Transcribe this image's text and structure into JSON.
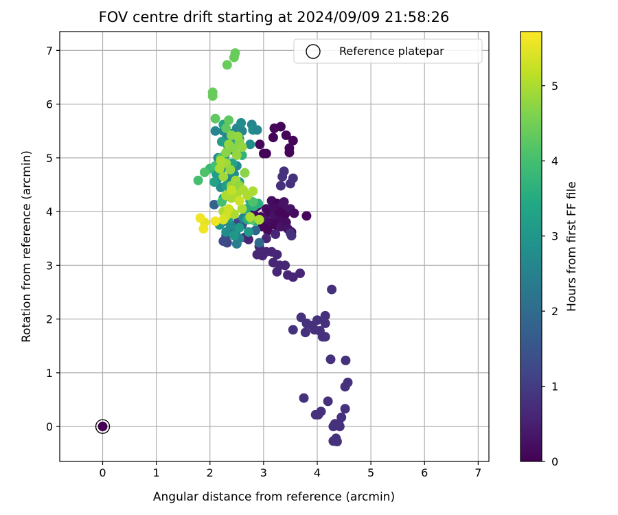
{
  "chart_data": {
    "type": "scatter",
    "title": "FOV centre drift starting at 2024/09/09 21:58:26",
    "xlabel": "Angular distance from reference (arcmin)",
    "ylabel": "Rotation from reference (arcmin)",
    "colorbar_label": "Hours from first FF file",
    "xlim": [
      -0.8,
      7.2
    ],
    "ylim": [
      -0.65,
      7.35
    ],
    "clim": [
      0,
      5.72
    ],
    "x_ticks": [
      "0",
      "1",
      "2",
      "3",
      "4",
      "5",
      "6",
      "7"
    ],
    "y_ticks": [
      "0",
      "1",
      "2",
      "3",
      "4",
      "5",
      "6",
      "7"
    ],
    "colorbar_ticks": [
      "0",
      "1",
      "2",
      "3",
      "4",
      "5"
    ],
    "grid": true,
    "colormap": "viridis",
    "legend": {
      "position": "top-right",
      "entries": [
        "Reference platepar"
      ]
    },
    "reference_point": {
      "x": 0,
      "y": 0
    },
    "points": [
      {
        "x": 3.2,
        "y": 5.55,
        "h": 0.1
      },
      {
        "x": 3.32,
        "y": 5.58,
        "h": 0.05
      },
      {
        "x": 3.42,
        "y": 5.42,
        "h": 0.1
      },
      {
        "x": 3.55,
        "y": 5.32,
        "h": 0.05
      },
      {
        "x": 3.48,
        "y": 5.18,
        "h": 0.1
      },
      {
        "x": 3.48,
        "y": 5.1,
        "h": 0.05
      },
      {
        "x": 3.0,
        "y": 5.08,
        "h": 0.1
      },
      {
        "x": 3.05,
        "y": 5.08,
        "h": 0.05
      },
      {
        "x": 2.93,
        "y": 5.25,
        "h": 0.1
      },
      {
        "x": 3.18,
        "y": 5.38,
        "h": 0.05
      },
      {
        "x": 3.15,
        "y": 4.2,
        "h": 0.2
      },
      {
        "x": 3.25,
        "y": 4.15,
        "h": 0.1
      },
      {
        "x": 3.35,
        "y": 4.1,
        "h": 0.3
      },
      {
        "x": 3.05,
        "y": 4.05,
        "h": 0.2
      },
      {
        "x": 3.1,
        "y": 3.98,
        "h": 0.1
      },
      {
        "x": 3.2,
        "y": 3.92,
        "h": 0.3
      },
      {
        "x": 3.3,
        "y": 3.88,
        "h": 0.2
      },
      {
        "x": 3.4,
        "y": 3.95,
        "h": 0.1
      },
      {
        "x": 3.5,
        "y": 4.05,
        "h": 0.3
      },
      {
        "x": 3.57,
        "y": 3.97,
        "h": 0.2
      },
      {
        "x": 2.95,
        "y": 3.9,
        "h": 0.1
      },
      {
        "x": 3.02,
        "y": 3.85,
        "h": 0.3
      },
      {
        "x": 3.12,
        "y": 3.8,
        "h": 0.2
      },
      {
        "x": 3.22,
        "y": 3.75,
        "h": 0.1
      },
      {
        "x": 3.32,
        "y": 3.72,
        "h": 0.3
      },
      {
        "x": 3.42,
        "y": 3.8,
        "h": 0.2
      },
      {
        "x": 3.8,
        "y": 3.92,
        "h": 0.1
      },
      {
        "x": 2.88,
        "y": 4.1,
        "h": 0.3
      },
      {
        "x": 2.82,
        "y": 3.95,
        "h": 0.2
      },
      {
        "x": 3.28,
        "y": 4.0,
        "h": 0.1
      },
      {
        "x": 3.38,
        "y": 4.18,
        "h": 0.3
      },
      {
        "x": 3.18,
        "y": 4.08,
        "h": 0.2
      },
      {
        "x": 2.98,
        "y": 3.72,
        "h": 0.1
      },
      {
        "x": 3.45,
        "y": 3.68,
        "h": 0.3
      },
      {
        "x": 3.52,
        "y": 3.62,
        "h": 0.2
      },
      {
        "x": 3.08,
        "y": 3.65,
        "h": 0.1
      },
      {
        "x": 3.35,
        "y": 4.65,
        "h": 0.8
      },
      {
        "x": 3.38,
        "y": 4.75,
        "h": 0.8
      },
      {
        "x": 3.32,
        "y": 4.48,
        "h": 0.8
      },
      {
        "x": 3.5,
        "y": 4.52,
        "h": 0.8
      },
      {
        "x": 3.55,
        "y": 4.62,
        "h": 0.8
      },
      {
        "x": 3.52,
        "y": 3.55,
        "h": 0.8
      },
      {
        "x": 3.5,
        "y": 3.6,
        "h": 0.8
      },
      {
        "x": 3.22,
        "y": 3.58,
        "h": 0.6
      },
      {
        "x": 3.05,
        "y": 3.5,
        "h": 0.6
      },
      {
        "x": 2.92,
        "y": 3.35,
        "h": 0.6
      },
      {
        "x": 3.05,
        "y": 3.25,
        "h": 0.6
      },
      {
        "x": 2.98,
        "y": 3.18,
        "h": 0.6
      },
      {
        "x": 2.88,
        "y": 3.2,
        "h": 0.6
      },
      {
        "x": 3.15,
        "y": 3.25,
        "h": 0.6
      },
      {
        "x": 3.25,
        "y": 3.2,
        "h": 0.6
      },
      {
        "x": 3.18,
        "y": 3.05,
        "h": 0.6
      },
      {
        "x": 3.3,
        "y": 3.0,
        "h": 0.6
      },
      {
        "x": 3.4,
        "y": 3.0,
        "h": 0.6
      },
      {
        "x": 3.45,
        "y": 2.82,
        "h": 0.6
      },
      {
        "x": 3.55,
        "y": 2.78,
        "h": 0.6
      },
      {
        "x": 3.68,
        "y": 2.85,
        "h": 0.6
      },
      {
        "x": 3.25,
        "y": 2.88,
        "h": 0.6
      },
      {
        "x": 2.72,
        "y": 3.48,
        "h": 0.6
      },
      {
        "x": 2.65,
        "y": 3.52,
        "h": 0.6
      },
      {
        "x": 4.27,
        "y": 2.55,
        "h": 0.8
      },
      {
        "x": 3.7,
        "y": 2.03,
        "h": 0.8
      },
      {
        "x": 3.8,
        "y": 1.92,
        "h": 0.8
      },
      {
        "x": 3.9,
        "y": 1.88,
        "h": 0.8
      },
      {
        "x": 4.0,
        "y": 1.98,
        "h": 0.8
      },
      {
        "x": 4.15,
        "y": 2.06,
        "h": 0.8
      },
      {
        "x": 4.15,
        "y": 1.92,
        "h": 0.8
      },
      {
        "x": 3.95,
        "y": 1.8,
        "h": 0.8
      },
      {
        "x": 4.05,
        "y": 1.78,
        "h": 0.8
      },
      {
        "x": 3.55,
        "y": 1.8,
        "h": 0.8
      },
      {
        "x": 3.78,
        "y": 1.75,
        "h": 0.8
      },
      {
        "x": 4.1,
        "y": 1.67,
        "h": 0.8
      },
      {
        "x": 4.15,
        "y": 1.67,
        "h": 0.8
      },
      {
        "x": 4.25,
        "y": 1.25,
        "h": 0.8
      },
      {
        "x": 4.53,
        "y": 1.23,
        "h": 0.8
      },
      {
        "x": 4.57,
        "y": 0.82,
        "h": 0.8
      },
      {
        "x": 4.52,
        "y": 0.74,
        "h": 0.8
      },
      {
        "x": 3.75,
        "y": 0.53,
        "h": 0.8
      },
      {
        "x": 4.2,
        "y": 0.47,
        "h": 0.8
      },
      {
        "x": 4.52,
        "y": 0.33,
        "h": 0.8
      },
      {
        "x": 4.07,
        "y": 0.28,
        "h": 0.8
      },
      {
        "x": 3.97,
        "y": 0.22,
        "h": 0.8
      },
      {
        "x": 4.02,
        "y": 0.22,
        "h": 0.8
      },
      {
        "x": 4.45,
        "y": 0.17,
        "h": 0.8
      },
      {
        "x": 4.33,
        "y": 0.05,
        "h": 0.8
      },
      {
        "x": 4.4,
        "y": 0.05,
        "h": 0.8
      },
      {
        "x": 4.3,
        "y": 0.0,
        "h": 0.8
      },
      {
        "x": 4.42,
        "y": 0.0,
        "h": 0.8
      },
      {
        "x": 4.35,
        "y": -0.22,
        "h": 0.8
      },
      {
        "x": 4.3,
        "y": -0.27,
        "h": 0.8
      },
      {
        "x": 4.37,
        "y": -0.28,
        "h": 0.8
      },
      {
        "x": 2.22,
        "y": 3.8,
        "h": 1.3
      },
      {
        "x": 2.3,
        "y": 3.55,
        "h": 1.2
      },
      {
        "x": 2.4,
        "y": 3.65,
        "h": 1.3
      },
      {
        "x": 2.32,
        "y": 3.42,
        "h": 1.2
      },
      {
        "x": 2.25,
        "y": 3.45,
        "h": 1.3
      },
      {
        "x": 2.52,
        "y": 3.8,
        "h": 1.2
      },
      {
        "x": 2.6,
        "y": 3.75,
        "h": 1.3
      },
      {
        "x": 2.08,
        "y": 4.13,
        "h": 1.8
      },
      {
        "x": 2.85,
        "y": 3.65,
        "h": 1.9
      },
      {
        "x": 2.92,
        "y": 3.42,
        "h": 2.0
      },
      {
        "x": 2.5,
        "y": 3.4,
        "h": 2.4
      },
      {
        "x": 2.55,
        "y": 3.5,
        "h": 2.5
      },
      {
        "x": 2.15,
        "y": 5.0,
        "h": 2.6
      },
      {
        "x": 2.25,
        "y": 5.5,
        "h": 2.6
      },
      {
        "x": 2.3,
        "y": 5.35,
        "h": 2.6
      },
      {
        "x": 2.4,
        "y": 5.45,
        "h": 2.6
      },
      {
        "x": 2.5,
        "y": 5.55,
        "h": 2.6
      },
      {
        "x": 2.6,
        "y": 5.5,
        "h": 2.6
      },
      {
        "x": 2.58,
        "y": 5.65,
        "h": 2.8
      },
      {
        "x": 2.78,
        "y": 5.62,
        "h": 2.6
      },
      {
        "x": 2.8,
        "y": 5.52,
        "h": 2.8
      },
      {
        "x": 2.88,
        "y": 5.52,
        "h": 2.6
      },
      {
        "x": 2.75,
        "y": 5.25,
        "h": 2.8
      },
      {
        "x": 2.55,
        "y": 5.35,
        "h": 2.6
      },
      {
        "x": 2.4,
        "y": 5.15,
        "h": 2.8
      },
      {
        "x": 2.28,
        "y": 5.05,
        "h": 2.6
      },
      {
        "x": 2.2,
        "y": 4.75,
        "h": 2.8
      },
      {
        "x": 2.35,
        "y": 4.62,
        "h": 2.6
      },
      {
        "x": 2.45,
        "y": 4.7,
        "h": 2.8
      },
      {
        "x": 2.5,
        "y": 4.85,
        "h": 2.6
      },
      {
        "x": 2.3,
        "y": 4.85,
        "h": 2.8
      },
      {
        "x": 2.15,
        "y": 4.62,
        "h": 2.6
      },
      {
        "x": 2.2,
        "y": 4.45,
        "h": 2.8
      },
      {
        "x": 2.1,
        "y": 5.5,
        "h": 2.6
      },
      {
        "x": 2.38,
        "y": 3.75,
        "h": 2.8
      },
      {
        "x": 2.48,
        "y": 3.62,
        "h": 2.6
      },
      {
        "x": 2.3,
        "y": 3.62,
        "h": 2.8
      },
      {
        "x": 2.62,
        "y": 3.88,
        "h": 2.6
      },
      {
        "x": 2.72,
        "y": 3.62,
        "h": 3.0
      },
      {
        "x": 2.55,
        "y": 3.7,
        "h": 3.1
      },
      {
        "x": 2.45,
        "y": 3.55,
        "h": 3.0
      },
      {
        "x": 2.35,
        "y": 3.88,
        "h": 3.2
      },
      {
        "x": 2.18,
        "y": 3.75,
        "h": 3.0
      },
      {
        "x": 2.22,
        "y": 5.3,
        "h": 3.2
      },
      {
        "x": 2.25,
        "y": 5.62,
        "h": 3.3
      },
      {
        "x": 2.32,
        "y": 5.25,
        "h": 3.2
      },
      {
        "x": 2.45,
        "y": 5.3,
        "h": 3.3
      },
      {
        "x": 2.28,
        "y": 4.95,
        "h": 3.2
      },
      {
        "x": 2.42,
        "y": 4.9,
        "h": 3.3
      },
      {
        "x": 2.3,
        "y": 4.48,
        "h": 3.2
      },
      {
        "x": 2.42,
        "y": 4.4,
        "h": 3.3
      },
      {
        "x": 2.55,
        "y": 4.55,
        "h": 3.2
      },
      {
        "x": 2.08,
        "y": 4.55,
        "h": 3.3
      },
      {
        "x": 2.12,
        "y": 4.7,
        "h": 3.2
      },
      {
        "x": 2.25,
        "y": 4.25,
        "h": 3.3
      },
      {
        "x": 2.75,
        "y": 4.2,
        "h": 3.5
      },
      {
        "x": 2.82,
        "y": 4.1,
        "h": 3.6
      },
      {
        "x": 2.68,
        "y": 4.05,
        "h": 3.5
      },
      {
        "x": 2.85,
        "y": 3.82,
        "h": 3.6
      },
      {
        "x": 2.7,
        "y": 3.85,
        "h": 3.5
      },
      {
        "x": 2.9,
        "y": 4.15,
        "h": 3.6
      },
      {
        "x": 2.38,
        "y": 4.0,
        "h": 3.7
      },
      {
        "x": 2.4,
        "y": 5.2,
        "h": 3.6
      },
      {
        "x": 2.6,
        "y": 5.05,
        "h": 3.7
      },
      {
        "x": 2.0,
        "y": 4.8,
        "h": 3.8
      },
      {
        "x": 1.9,
        "y": 4.73,
        "h": 4.1
      },
      {
        "x": 1.78,
        "y": 4.58,
        "h": 4.0
      },
      {
        "x": 2.1,
        "y": 4.85,
        "h": 4.0
      },
      {
        "x": 2.2,
        "y": 5.0,
        "h": 4.1
      },
      {
        "x": 2.35,
        "y": 5.7,
        "h": 4.3
      },
      {
        "x": 2.1,
        "y": 5.73,
        "h": 4.3
      },
      {
        "x": 2.3,
        "y": 5.55,
        "h": 4.3
      },
      {
        "x": 2.22,
        "y": 4.18,
        "h": 4.0
      },
      {
        "x": 2.3,
        "y": 4.3,
        "h": 4.2
      },
      {
        "x": 2.8,
        "y": 4.18,
        "h": 4.1
      },
      {
        "x": 2.78,
        "y": 3.85,
        "h": 4.2
      },
      {
        "x": 2.05,
        "y": 6.15,
        "h": 4.4
      },
      {
        "x": 2.05,
        "y": 6.22,
        "h": 4.4
      },
      {
        "x": 2.32,
        "y": 6.73,
        "h": 4.4
      },
      {
        "x": 2.45,
        "y": 6.87,
        "h": 4.4
      },
      {
        "x": 2.47,
        "y": 6.95,
        "h": 4.4
      },
      {
        "x": 2.3,
        "y": 5.1,
        "h": 4.7
      },
      {
        "x": 2.35,
        "y": 5.25,
        "h": 4.8
      },
      {
        "x": 2.45,
        "y": 5.18,
        "h": 4.7
      },
      {
        "x": 2.5,
        "y": 5.05,
        "h": 4.8
      },
      {
        "x": 2.55,
        "y": 5.3,
        "h": 4.7
      },
      {
        "x": 2.6,
        "y": 5.2,
        "h": 4.8
      },
      {
        "x": 2.4,
        "y": 5.42,
        "h": 4.7
      },
      {
        "x": 2.52,
        "y": 5.4,
        "h": 4.8
      },
      {
        "x": 2.3,
        "y": 4.9,
        "h": 4.9
      },
      {
        "x": 2.38,
        "y": 4.78,
        "h": 4.8
      },
      {
        "x": 2.25,
        "y": 4.65,
        "h": 4.9
      },
      {
        "x": 2.4,
        "y": 4.48,
        "h": 4.8
      },
      {
        "x": 2.48,
        "y": 4.58,
        "h": 4.9
      },
      {
        "x": 2.55,
        "y": 4.48,
        "h": 4.8
      },
      {
        "x": 2.65,
        "y": 4.72,
        "h": 4.7
      },
      {
        "x": 2.62,
        "y": 4.4,
        "h": 5.0
      },
      {
        "x": 2.3,
        "y": 4.3,
        "h": 5.0
      },
      {
        "x": 2.4,
        "y": 4.25,
        "h": 5.0
      },
      {
        "x": 2.5,
        "y": 4.32,
        "h": 5.0
      },
      {
        "x": 2.25,
        "y": 4.0,
        "h": 5.0
      },
      {
        "x": 2.45,
        "y": 3.95,
        "h": 5.0
      },
      {
        "x": 2.6,
        "y": 4.05,
        "h": 5.0
      },
      {
        "x": 2.7,
        "y": 4.3,
        "h": 5.0
      },
      {
        "x": 2.8,
        "y": 4.38,
        "h": 5.0
      },
      {
        "x": 2.75,
        "y": 3.9,
        "h": 5.0
      },
      {
        "x": 2.92,
        "y": 3.85,
        "h": 5.0
      },
      {
        "x": 2.2,
        "y": 4.95,
        "h": 5.0
      },
      {
        "x": 2.18,
        "y": 4.8,
        "h": 5.0
      },
      {
        "x": 2.35,
        "y": 4.05,
        "h": 5.3
      },
      {
        "x": 2.3,
        "y": 3.92,
        "h": 5.3
      },
      {
        "x": 2.25,
        "y": 3.85,
        "h": 5.4
      },
      {
        "x": 2.4,
        "y": 4.4,
        "h": 5.2
      },
      {
        "x": 2.55,
        "y": 4.2,
        "h": 5.3
      },
      {
        "x": 1.9,
        "y": 3.8,
        "h": 5.5
      },
      {
        "x": 1.82,
        "y": 3.88,
        "h": 5.6
      },
      {
        "x": 1.88,
        "y": 3.68,
        "h": 5.6
      },
      {
        "x": 2.1,
        "y": 3.82,
        "h": 5.6
      },
      {
        "x": 0.0,
        "y": 0.0,
        "h": 0.0
      }
    ]
  }
}
